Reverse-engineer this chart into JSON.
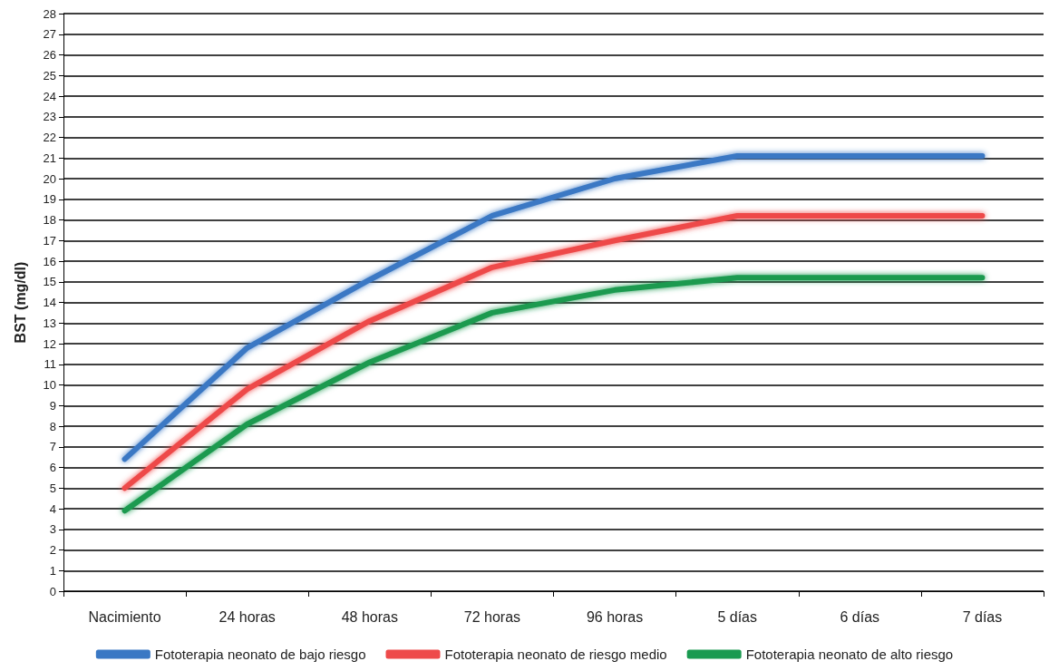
{
  "chart_data": {
    "type": "line",
    "ylabel": "BST (mg/dl)",
    "categories": [
      "Nacimiento",
      "24 horas",
      "48 horas",
      "72 horas",
      "96 horas",
      "5 días",
      "6 días",
      "7 días"
    ],
    "series": [
      {
        "name": "Fototerapia neonato de bajo riesgo",
        "color": "#3a78c4",
        "values": [
          6.4,
          11.8,
          15.1,
          18.2,
          20.0,
          21.1,
          21.1,
          21.1
        ]
      },
      {
        "name": "Fototerapia neonato de riesgo medio",
        "color": "#ee4a4a",
        "values": [
          5.0,
          9.8,
          13.1,
          15.7,
          17.0,
          18.2,
          18.2,
          18.2
        ]
      },
      {
        "name": "Fototerapia neonato de alto riesgo",
        "color": "#1a9a50",
        "values": [
          3.9,
          8.1,
          11.1,
          13.5,
          14.6,
          15.2,
          15.2,
          15.2
        ]
      }
    ],
    "ylim": [
      0,
      28
    ],
    "yticks": [
      0,
      1,
      2,
      3,
      4,
      5,
      6,
      7,
      8,
      9,
      10,
      11,
      12,
      13,
      14,
      15,
      16,
      17,
      18,
      19,
      20,
      21,
      22,
      23,
      24,
      25,
      26,
      27,
      28
    ],
    "grid": "y",
    "legend": "bottom",
    "marker": "none",
    "line_style": "solid"
  }
}
